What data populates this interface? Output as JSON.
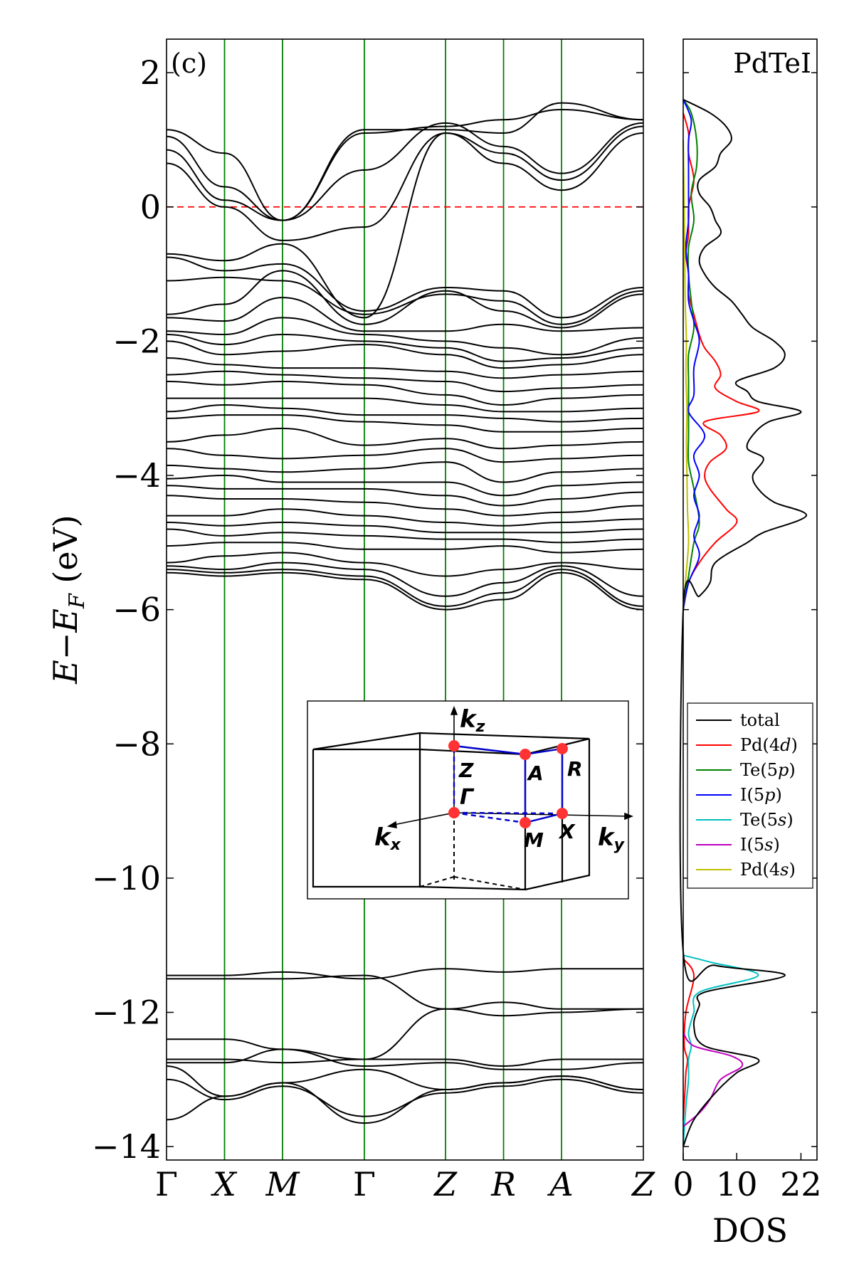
{
  "chart_data": [
    {
      "type": "line",
      "panel_label": "(c)",
      "ylabel": "E−E_F (eV)",
      "ylabel_main": "E−E",
      "ylabel_sub": "F",
      "ylabel_unit": " (eV)",
      "ylim": [
        -14.2,
        2.5
      ],
      "yticks": [
        2,
        0,
        -2,
        -4,
        -6,
        -8,
        -10,
        -12,
        -14
      ],
      "ytick_labels": [
        "2",
        "0",
        "−2",
        "−4",
        "−6",
        "−8",
        "−10",
        "−12",
        "−14"
      ],
      "k_path": [
        "Γ",
        "X",
        "M",
        "Γ",
        "Z",
        "R",
        "A",
        "Z"
      ],
      "k_positions": [
        0,
        1,
        2,
        3.41,
        4.81,
        5.81,
        6.81,
        8.22
      ],
      "fermi_level": 0,
      "grid": false,
      "high_symmetry_lines_color": "#008000",
      "fermi_line_color": "#ff0000",
      "band_color": "#000000",
      "bands": [
        [
          1.15,
          0.8,
          -0.2,
          1.15,
          1.15,
          1.1,
          1.55,
          1.3
        ],
        [
          1.05,
          0.3,
          -0.2,
          1.1,
          1.2,
          1.3,
          1.45,
          1.3
        ],
        [
          0.85,
          0.1,
          -0.2,
          0.55,
          1.25,
          0.9,
          0.5,
          1.25
        ],
        [
          0.65,
          0.0,
          -0.5,
          -0.3,
          1.1,
          0.8,
          0.4,
          1.2
        ],
        [
          -0.7,
          -0.8,
          -0.55,
          -1.65,
          1.1,
          0.65,
          0.25,
          1.1
        ],
        [
          -0.75,
          -0.95,
          -0.85,
          -1.55,
          -1.2,
          -1.25,
          -1.65,
          -1.2
        ],
        [
          -1.1,
          -1.05,
          -1.1,
          -1.6,
          -1.3,
          -1.4,
          -1.75,
          -1.25
        ],
        [
          -1.6,
          -1.45,
          -0.95,
          -1.75,
          -1.25,
          -1.55,
          -1.8,
          -1.3
        ],
        [
          -1.65,
          -1.7,
          -1.35,
          -1.85,
          -1.85,
          -1.75,
          -1.85,
          -1.8
        ],
        [
          -1.85,
          -1.9,
          -1.65,
          -1.9,
          -2.0,
          -2.1,
          -2.2,
          -1.95
        ],
        [
          -1.9,
          -2.05,
          -1.9,
          -2.0,
          -2.1,
          -2.3,
          -2.25,
          -2.1
        ],
        [
          -2.0,
          -2.2,
          -2.15,
          -2.05,
          -2.2,
          -2.4,
          -2.35,
          -2.2
        ],
        [
          -2.25,
          -2.35,
          -2.4,
          -2.4,
          -2.45,
          -2.55,
          -2.5,
          -2.45
        ],
        [
          -2.5,
          -2.45,
          -2.5,
          -2.55,
          -2.6,
          -2.75,
          -2.7,
          -2.65
        ],
        [
          -2.6,
          -2.65,
          -2.6,
          -2.65,
          -2.8,
          -2.95,
          -2.85,
          -2.8
        ],
        [
          -2.85,
          -2.85,
          -2.85,
          -2.85,
          -2.95,
          -3.05,
          -3.05,
          -3.0
        ],
        [
          -3.05,
          -2.95,
          -3.0,
          -3.1,
          -3.1,
          -3.15,
          -3.2,
          -3.15
        ],
        [
          -3.15,
          -3.1,
          -3.1,
          -3.2,
          -3.25,
          -3.35,
          -3.35,
          -3.3
        ],
        [
          -3.5,
          -3.4,
          -3.3,
          -3.55,
          -3.45,
          -3.6,
          -3.55,
          -3.5
        ],
        [
          -3.6,
          -3.7,
          -3.75,
          -3.7,
          -3.6,
          -3.8,
          -3.75,
          -3.7
        ],
        [
          -3.85,
          -3.9,
          -3.95,
          -3.9,
          -3.8,
          -4.1,
          -3.95,
          -3.9
        ],
        [
          -4.05,
          -4.0,
          -4.1,
          -4.1,
          -4.1,
          -4.3,
          -4.15,
          -4.1
        ],
        [
          -4.15,
          -4.2,
          -4.2,
          -4.2,
          -4.3,
          -4.45,
          -4.35,
          -4.25
        ],
        [
          -4.3,
          -4.35,
          -4.35,
          -4.4,
          -4.5,
          -4.6,
          -4.55,
          -4.45
        ],
        [
          -4.6,
          -4.6,
          -4.5,
          -4.6,
          -4.7,
          -4.75,
          -4.7,
          -4.65
        ],
        [
          -4.7,
          -4.75,
          -4.7,
          -4.75,
          -4.85,
          -4.85,
          -4.85,
          -4.8
        ],
        [
          -4.8,
          -4.9,
          -4.85,
          -4.9,
          -4.95,
          -4.95,
          -5.0,
          -4.95
        ],
        [
          -5.05,
          -5.0,
          -5.0,
          -5.1,
          -5.1,
          -5.05,
          -5.15,
          -5.1
        ],
        [
          -5.3,
          -5.2,
          -5.15,
          -5.3,
          -5.5,
          -5.4,
          -5.3,
          -5.4
        ],
        [
          -5.35,
          -5.4,
          -5.3,
          -5.4,
          -5.8,
          -5.6,
          -5.35,
          -5.8
        ],
        [
          -5.4,
          -5.45,
          -5.4,
          -5.5,
          -5.95,
          -5.75,
          -5.4,
          -5.95
        ],
        [
          -5.45,
          -5.5,
          -5.45,
          -5.55,
          -6.0,
          -5.85,
          -5.45,
          -6.0
        ],
        [
          -11.45,
          -11.45,
          -11.4,
          -11.5,
          -11.35,
          -11.4,
          -11.35,
          -11.35
        ],
        [
          -11.5,
          -11.5,
          -11.5,
          -11.45,
          -11.95,
          -11.85,
          -11.95,
          -11.95
        ],
        [
          -12.4,
          -12.4,
          -12.55,
          -12.7,
          -11.95,
          -12.05,
          -12.0,
          -11.95
        ],
        [
          -12.7,
          -12.7,
          -12.75,
          -12.7,
          -12.7,
          -12.8,
          -12.7,
          -12.7
        ],
        [
          -12.75,
          -12.75,
          -12.55,
          -12.8,
          -12.75,
          -12.85,
          -12.85,
          -12.75
        ],
        [
          -12.8,
          -13.25,
          -13.05,
          -12.85,
          -13.15,
          -13.05,
          -12.95,
          -13.15
        ],
        [
          -13.0,
          -13.3,
          -13.1,
          -13.55,
          -13.2,
          -13.1,
          -13.0,
          -13.2
        ],
        [
          -13.6,
          -13.25,
          -13.05,
          -13.65,
          -13.15,
          -13.05,
          -12.95,
          -13.15
        ]
      ]
    },
    {
      "type": "line",
      "title": "PdTeI",
      "xlabel": "DOS",
      "xlim": [
        0,
        25
      ],
      "xticks": [
        0,
        10,
        22
      ],
      "xtick_labels": [
        "0",
        "10",
        "22"
      ],
      "ylim": [
        -14.2,
        2.5
      ],
      "legend_position": "center-right",
      "series": [
        {
          "name": "total",
          "color": "#000000",
          "E": [
            -14.0,
            -13.6,
            -13.2,
            -12.9,
            -12.7,
            -12.5,
            -12.2,
            -11.9,
            -11.7,
            -11.45,
            -11.3,
            -11.1,
            -6.0,
            -5.8,
            -5.6,
            -5.3,
            -5.0,
            -4.85,
            -4.6,
            -4.4,
            -4.2,
            -4.0,
            -3.75,
            -3.6,
            -3.4,
            -3.2,
            -3.05,
            -2.9,
            -2.75,
            -2.6,
            -2.4,
            -2.2,
            -2.0,
            -1.8,
            -1.6,
            -1.4,
            -1.2,
            -1.0,
            -0.8,
            -0.6,
            -0.4,
            -0.2,
            0.0,
            0.2,
            0.4,
            0.6,
            0.8,
            1.0,
            1.2,
            1.4,
            1.6
          ],
          "v": [
            0,
            2,
            6,
            10,
            14,
            4,
            2,
            3,
            4,
            19,
            6,
            0,
            0,
            3,
            5,
            6,
            12,
            15,
            23,
            17,
            14,
            13,
            15,
            12,
            13,
            16,
            22,
            14,
            12,
            10,
            17,
            19,
            17,
            13,
            11,
            9,
            6,
            4,
            3,
            4,
            7,
            6,
            5,
            3,
            3,
            6,
            7,
            9,
            8,
            5,
            0
          ]
        },
        {
          "name": "Pd(4d)",
          "color": "#ff0000",
          "E": [
            -6.0,
            -5.6,
            -5.3,
            -5.0,
            -4.7,
            -4.5,
            -4.2,
            -4.0,
            -3.8,
            -3.6,
            -3.4,
            -3.2,
            -3.05,
            -2.9,
            -2.7,
            -2.5,
            -2.3,
            -2.1,
            -1.9,
            -1.6,
            -1.3,
            -1.0,
            -0.7,
            -0.4,
            0.0,
            0.4,
            0.8,
            1.1,
            1.4
          ],
          "v": [
            0,
            1,
            3,
            6,
            10,
            8,
            5,
            4,
            5,
            8,
            7,
            4,
            14,
            10,
            6,
            7,
            6,
            4,
            3,
            2,
            1,
            1,
            0.5,
            1,
            1,
            2,
            1,
            1,
            0
          ],
          "E2": [
            -13.6,
            -13.2,
            -12.9,
            -12.7,
            -12.5,
            -12.0,
            -11.45,
            -11.2
          ],
          "v2": [
            0,
            0.3,
            0.5,
            0.8,
            0.2,
            0.5,
            2,
            0
          ]
        },
        {
          "name": "Te(5p)",
          "color": "#008000",
          "E": [
            -6.0,
            -5.5,
            -5.0,
            -4.7,
            -4.2,
            -3.8,
            -3.4,
            -3.0,
            -2.6,
            -2.2,
            -1.8,
            -1.4,
            -1.0,
            -0.6,
            -0.2,
            0.2,
            0.6,
            1.0,
            1.4,
            1.6
          ],
          "v": [
            0,
            1,
            2,
            3,
            2,
            1,
            1,
            1,
            1,
            1,
            2,
            1.5,
            1,
            1,
            2,
            1.5,
            2.5,
            2.5,
            1.5,
            0
          ]
        },
        {
          "name": "I(5p)",
          "color": "#0000ff",
          "E": [
            -6.0,
            -5.6,
            -5.2,
            -4.9,
            -4.6,
            -4.3,
            -4.0,
            -3.7,
            -3.4,
            -3.05,
            -2.8,
            -2.4,
            -2.0,
            -1.7,
            -1.4,
            -1.0,
            -0.6,
            -0.2,
            0.2,
            0.6,
            1.0,
            1.3,
            1.6
          ],
          "v": [
            0,
            1,
            3,
            2,
            3,
            2,
            3,
            2,
            4,
            1,
            2,
            2,
            3,
            2,
            1,
            1,
            0.5,
            1,
            1,
            1,
            1,
            1.5,
            0
          ]
        },
        {
          "name": "Te(5s)",
          "color": "#00bfbf",
          "E": [
            -14.0,
            -13.4,
            -13.0,
            -12.7,
            -12.5,
            -12.3,
            -12.0,
            -11.7,
            -11.45,
            -11.25,
            -11.15
          ],
          "v": [
            0,
            0.5,
            1,
            1,
            1.5,
            1,
            2,
            3,
            14,
            5,
            0
          ]
        },
        {
          "name": "I(5s)",
          "color": "#bf00bf",
          "E": [
            -13.7,
            -13.5,
            -13.3,
            -13.0,
            -12.8,
            -12.65,
            -12.5,
            -12.3
          ],
          "v": [
            0,
            3,
            5,
            7,
            11,
            9,
            2,
            0
          ]
        },
        {
          "name": "Pd(4s)",
          "color": "#bfbf00",
          "E": [
            -6.0,
            -5.5,
            -5.0,
            -4.5,
            -4.0,
            -3.5,
            -3.0,
            -2.5,
            -2.0,
            -1.5,
            -1.0,
            0.0,
            1.0
          ],
          "v": [
            0,
            0.5,
            1,
            0.8,
            0.7,
            0.6,
            0.7,
            0.5,
            0.6,
            0.4,
            0.3,
            0.2,
            0
          ]
        }
      ]
    }
  ],
  "inset": {
    "labels": {
      "kz": "k",
      "kz_sub": "z",
      "kx": "k",
      "kx_sub": "x",
      "ky": "k",
      "ky_sub": "y",
      "Z": "Z",
      "A": "A",
      "R": "R",
      "Gamma": "Γ",
      "M": "M",
      "X": "X"
    },
    "point_color": "#ff3333",
    "path_color": "#0000cc"
  }
}
